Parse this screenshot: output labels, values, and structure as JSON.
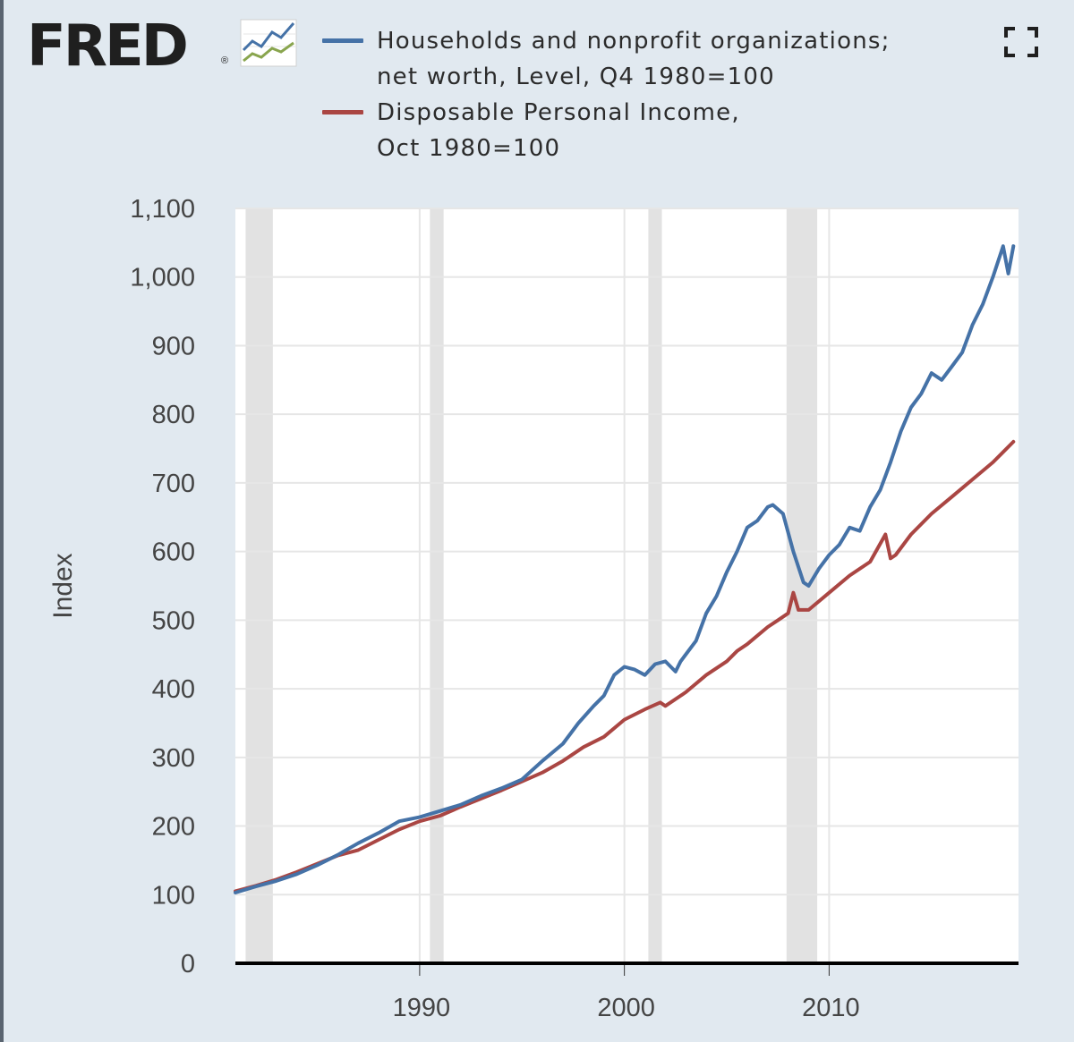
{
  "app": {
    "logo_text": "FRED",
    "logo_reg": "®",
    "logo_icon": "fred-chart-logo-icon",
    "fullscreen_icon": "fullscreen-icon"
  },
  "colors": {
    "background": "#e1e9f0",
    "plot_background": "#ffffff",
    "recession": "#e2e2e2",
    "series_blue": "#4572a7",
    "series_red": "#aa4643",
    "gridline": "#e6e6e6",
    "axis_line": "#000000"
  },
  "legend": [
    {
      "line1": "Households and nonprofit organizations;",
      "line2": "net worth, Level, Q4 1980=100",
      "color": "#4572a7"
    },
    {
      "line1": "Disposable Personal Income,",
      "line2": "Oct 1980=100",
      "color": "#aa4643"
    }
  ],
  "chart_data": {
    "type": "line",
    "ylabel": "Index",
    "xlabel": "",
    "ylim": [
      0,
      1100
    ],
    "yticks": [
      0,
      100,
      200,
      300,
      400,
      500,
      600,
      700,
      800,
      900,
      1000,
      1100
    ],
    "ytick_labels": [
      "0",
      "100",
      "200",
      "300",
      "400",
      "500",
      "600",
      "700",
      "800",
      "900",
      "1,000",
      "1,100"
    ],
    "xlim": [
      1981.0,
      2019.25
    ],
    "xticks": [
      1990,
      2000,
      2010
    ],
    "xtick_labels": [
      "1990",
      "2000",
      "2010"
    ],
    "grid": true,
    "legend_position": "top",
    "recessions": [
      [
        1981.5,
        1982.83
      ],
      [
        1990.5,
        1991.17
      ],
      [
        2001.17,
        2001.83
      ],
      [
        2007.92,
        2009.42
      ]
    ],
    "series": [
      {
        "name": "Households and nonprofit organizations; net worth, Level, Q4 1980=100",
        "color": "#4572a7",
        "x": [
          1981.0,
          1982.0,
          1983.0,
          1984.0,
          1985.0,
          1986.0,
          1987.0,
          1988.0,
          1989.0,
          1990.0,
          1991.0,
          1992.0,
          1993.0,
          1994.0,
          1995.0,
          1996.0,
          1997.0,
          1997.75,
          1998.5,
          1999.0,
          1999.5,
          2000.0,
          2000.5,
          2001.0,
          2001.5,
          2002.0,
          2002.5,
          2002.75,
          2003.5,
          2004.0,
          2004.5,
          2005.0,
          2005.5,
          2006.0,
          2006.5,
          2007.0,
          2007.25,
          2007.75,
          2008.25,
          2008.75,
          2009.0,
          2009.5,
          2010.0,
          2010.5,
          2011.0,
          2011.5,
          2012.0,
          2012.5,
          2013.0,
          2013.5,
          2014.0,
          2014.5,
          2015.0,
          2015.5,
          2016.0,
          2016.5,
          2017.0,
          2017.5,
          2018.0,
          2018.5,
          2018.75,
          2019.0
        ],
        "values": [
          103,
          112,
          120,
          130,
          143,
          158,
          175,
          190,
          207,
          213,
          222,
          231,
          244,
          255,
          268,
          295,
          320,
          350,
          375,
          390,
          420,
          432,
          428,
          420,
          436,
          440,
          425,
          440,
          470,
          510,
          535,
          570,
          600,
          635,
          645,
          665,
          668,
          655,
          600,
          555,
          550,
          575,
          595,
          610,
          635,
          630,
          665,
          690,
          730,
          775,
          810,
          830,
          860,
          850,
          870,
          890,
          930,
          960,
          1000,
          1045,
          1005,
          1045
        ]
      },
      {
        "name": "Disposable Personal Income, Oct 1980=100",
        "color": "#aa4643",
        "x": [
          1981.0,
          1982.0,
          1983.0,
          1984.0,
          1985.0,
          1986.0,
          1987.0,
          1988.0,
          1989.0,
          1990.0,
          1991.0,
          1992.0,
          1993.0,
          1994.0,
          1995.0,
          1996.0,
          1997.0,
          1998.0,
          1999.0,
          2000.0,
          2001.0,
          2001.75,
          2002.0,
          2003.0,
          2004.0,
          2005.0,
          2005.5,
          2006.0,
          2007.0,
          2007.5,
          2008.0,
          2008.25,
          2008.5,
          2009.0,
          2010.0,
          2011.0,
          2012.0,
          2012.75,
          2013.0,
          2013.25,
          2014.0,
          2015.0,
          2016.0,
          2017.0,
          2018.0,
          2019.0
        ],
        "values": [
          105,
          113,
          122,
          133,
          145,
          157,
          165,
          180,
          195,
          207,
          215,
          228,
          240,
          252,
          265,
          278,
          295,
          315,
          330,
          355,
          370,
          380,
          375,
          395,
          420,
          440,
          455,
          465,
          490,
          500,
          510,
          540,
          515,
          515,
          540,
          565,
          585,
          625,
          590,
          595,
          625,
          655,
          680,
          705,
          730,
          760
        ]
      }
    ]
  }
}
